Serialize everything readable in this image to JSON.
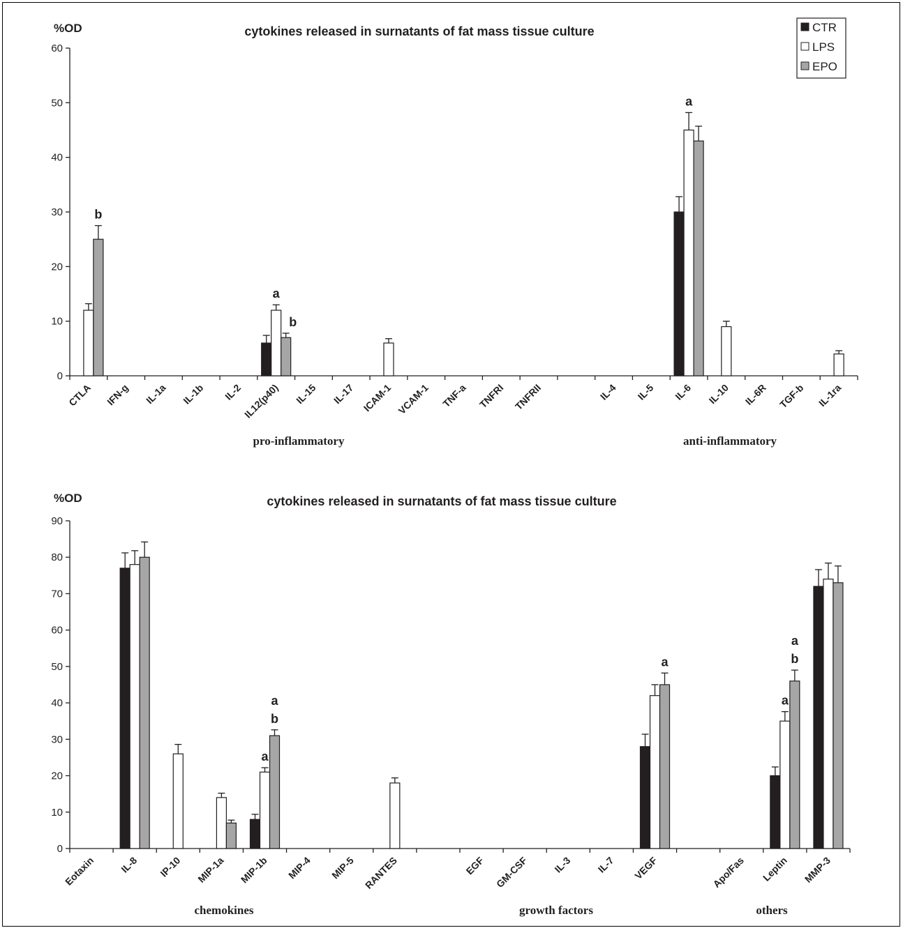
{
  "colors": {
    "CTR": "#231f20",
    "LPS": "#ffffff",
    "EPO": "#a6a6a6",
    "axis": "#231f20"
  },
  "chart_data": [
    {
      "type": "bar",
      "title": "cytokines released in surnatants of fat mass tissue culture",
      "ylabel": "%OD",
      "xlabel": "",
      "ylim": [
        0,
        60
      ],
      "yticks": [
        0,
        10,
        20,
        30,
        40,
        50,
        60
      ],
      "legend": {
        "position": "top-right",
        "entries": [
          "CTR",
          "LPS",
          "EPO"
        ]
      },
      "categories": [
        "CTLA",
        "IFN-g",
        "IL-1a",
        "IL-1b",
        "IL-2",
        "IL12(p40)",
        "IL-15",
        "IL-17",
        "ICAM-1",
        "VCAM-1",
        "TNF-a",
        "TNFRI",
        "TNFRII",
        "",
        "IL-4",
        "IL-5",
        "IL-6",
        "IL-10",
        "IL-6R",
        "TGF-b",
        "IL-1ra"
      ],
      "series": [
        {
          "name": "CTR",
          "values": [
            0,
            0,
            0,
            0,
            0,
            6,
            0,
            0,
            0,
            0,
            0,
            0,
            0,
            0,
            0,
            0,
            30,
            0,
            0,
            0,
            0
          ],
          "errors": [
            0,
            0,
            0,
            0,
            0,
            1.4,
            0,
            0,
            0,
            0,
            0,
            0,
            0,
            0,
            0,
            0,
            2.8,
            0,
            0,
            0,
            0
          ]
        },
        {
          "name": "LPS",
          "values": [
            12,
            0,
            0,
            0,
            0,
            12,
            0,
            0,
            6,
            0,
            0,
            0,
            0,
            0,
            0,
            0,
            45,
            9,
            0,
            0,
            4
          ],
          "errors": [
            1.2,
            0,
            0,
            0,
            0,
            1.0,
            0,
            0,
            0.8,
            0,
            0,
            0,
            0,
            0,
            0,
            0,
            3.2,
            1.0,
            0,
            0,
            0.6
          ]
        },
        {
          "name": "EPO",
          "values": [
            25,
            0,
            0,
            0,
            0,
            7,
            0,
            0,
            0,
            0,
            0,
            0,
            0,
            0,
            0,
            0,
            43,
            0,
            0,
            0,
            0
          ],
          "errors": [
            2.5,
            0,
            0,
            0,
            0,
            0.8,
            0,
            0,
            0,
            0,
            0,
            0,
            0,
            0,
            0,
            0,
            2.7,
            0,
            0,
            0,
            0
          ]
        }
      ],
      "annotations": [
        {
          "category": "CTLA",
          "series": "EPO",
          "text": "b"
        },
        {
          "category": "IL12(p40)",
          "series": "LPS",
          "text": "a"
        },
        {
          "category": "IL12(p40)",
          "series": "EPO",
          "text": "b"
        },
        {
          "category": "IL-6",
          "series": "LPS",
          "text": "a"
        }
      ],
      "groups": [
        {
          "label": "pro-inflammatory"
        },
        {
          "label": "anti-inflammatory"
        }
      ]
    },
    {
      "type": "bar",
      "title": "cytokines released in surnatants of fat mass tissue culture",
      "ylabel": "%OD",
      "xlabel": "",
      "ylim": [
        0,
        90
      ],
      "yticks": [
        0,
        10,
        20,
        30,
        40,
        50,
        60,
        70,
        80,
        90
      ],
      "categories": [
        "Eotaxin",
        "IL-8",
        "IP-10",
        "MIP-1a",
        "MIP-1b",
        "MIP-4",
        "MIP-5",
        "RANTES",
        "",
        "EGF",
        "GM-CSF",
        "IL-3",
        "IL-7",
        "VEGF",
        "",
        "Apo/Fas",
        "Leptin",
        "MMP-3"
      ],
      "series": [
        {
          "name": "CTR",
          "values": [
            0,
            77,
            0,
            0,
            8,
            0,
            0,
            0,
            0,
            0,
            0,
            0,
            0,
            28,
            0,
            0,
            20,
            72
          ],
          "errors": [
            0,
            4.2,
            0,
            0,
            1.4,
            0,
            0,
            0,
            0,
            0,
            0,
            0,
            0,
            3.4,
            0,
            0,
            2.4,
            4.6
          ]
        },
        {
          "name": "LPS",
          "values": [
            0,
            78,
            26,
            14,
            21,
            0,
            0,
            18,
            0,
            0,
            0,
            0,
            0,
            42,
            0,
            0,
            35,
            74
          ],
          "errors": [
            0,
            3.8,
            2.6,
            1.2,
            1.2,
            0,
            0,
            1.4,
            0,
            0,
            0,
            0,
            0,
            3.0,
            0,
            0,
            2.6,
            4.4
          ]
        },
        {
          "name": "EPO",
          "values": [
            0,
            80,
            0,
            7,
            31,
            0,
            0,
            0,
            0,
            0,
            0,
            0,
            0,
            45,
            0,
            0,
            46,
            73
          ],
          "errors": [
            0,
            4.2,
            0,
            0.8,
            1.6,
            0,
            0,
            0,
            0,
            0,
            0,
            0,
            0,
            3.2,
            0,
            0,
            3.0,
            4.6
          ]
        }
      ],
      "annotations": [
        {
          "category": "MIP-1b",
          "series": "LPS",
          "text": "a"
        },
        {
          "category": "MIP-1b",
          "series": "EPO",
          "text": "a b"
        },
        {
          "category": "VEGF",
          "series": "EPO",
          "text": "a"
        },
        {
          "category": "Leptin",
          "series": "LPS",
          "text": "a"
        },
        {
          "category": "Leptin",
          "series": "EPO",
          "text": "a b"
        }
      ],
      "groups": [
        {
          "label": "chemokines"
        },
        {
          "label": "growth factors"
        },
        {
          "label": "others"
        }
      ]
    }
  ]
}
